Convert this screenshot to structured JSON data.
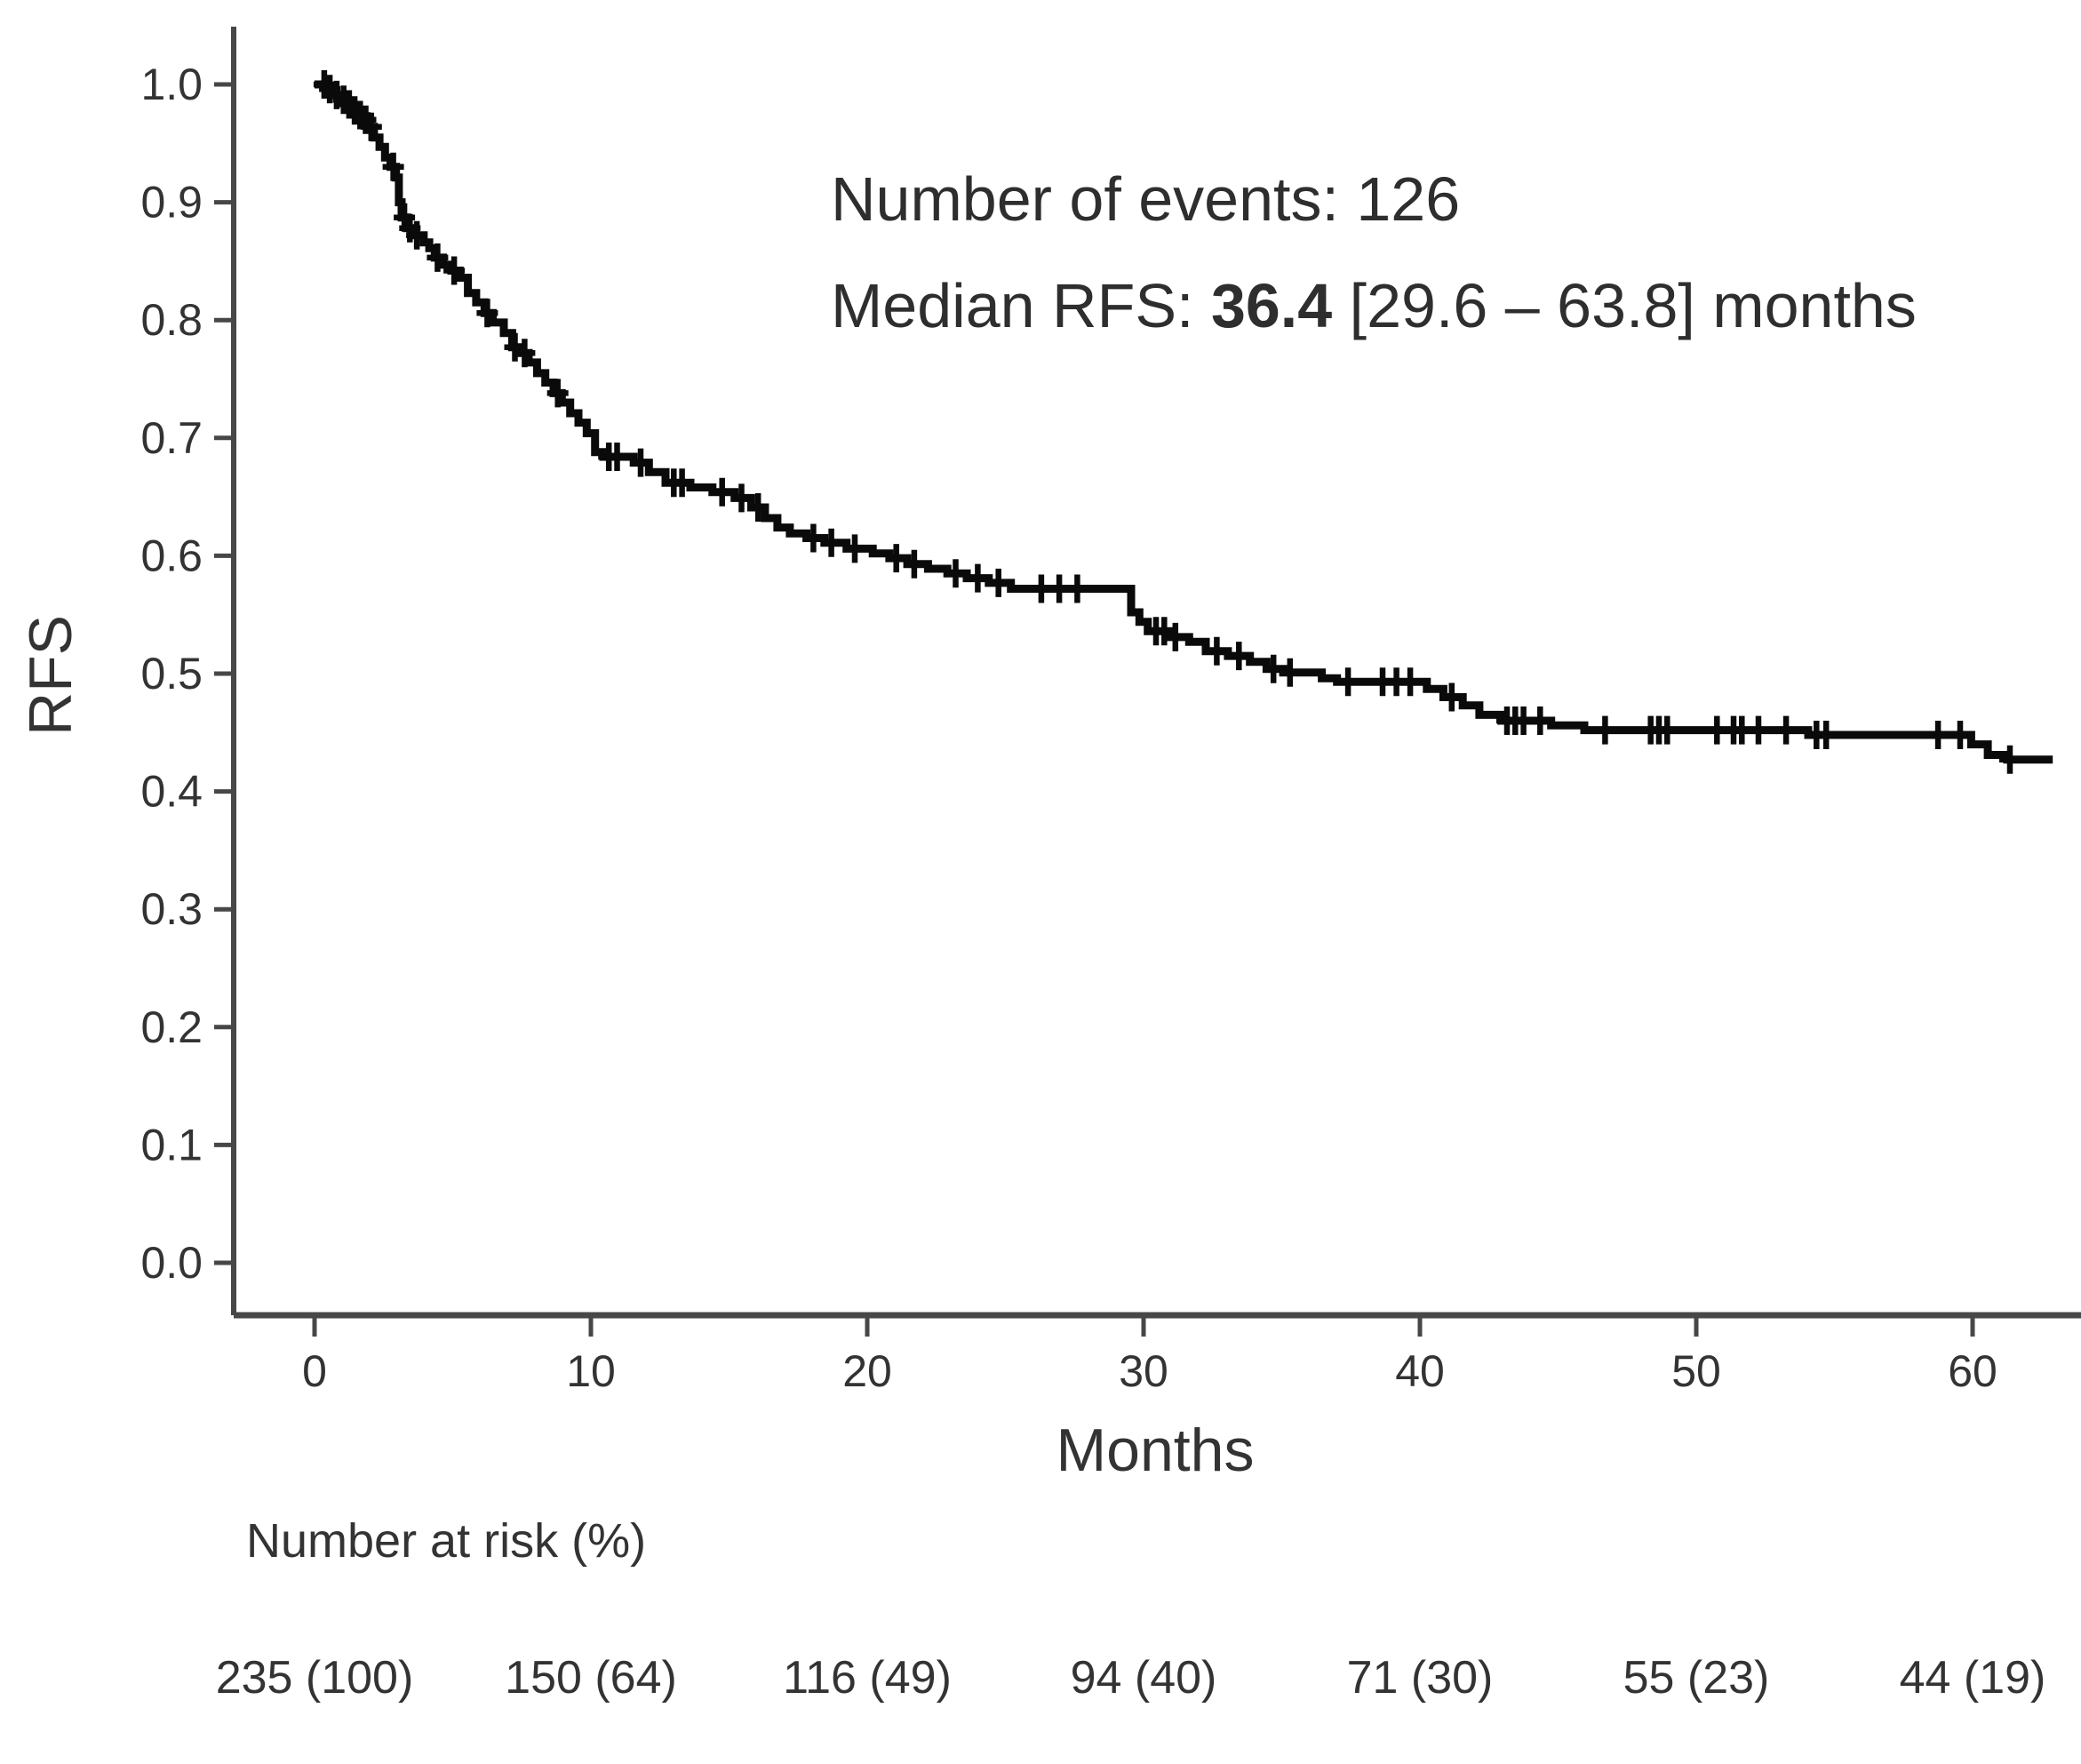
{
  "chart_data": {
    "type": "line",
    "subtype": "kaplan-meier-step-curve",
    "title": "",
    "xlabel": "Months",
    "ylabel": "RFS",
    "xlim": [
      0,
      63.5
    ],
    "ylim": [
      0.0,
      1.0
    ],
    "x_ticks": [
      0,
      10,
      20,
      30,
      40,
      50,
      60
    ],
    "y_ticks": [
      0.0,
      0.1,
      0.2,
      0.3,
      0.4,
      0.5,
      0.6,
      0.7,
      0.8,
      0.9,
      1.0
    ],
    "grid": "off",
    "legend": "none",
    "annotation": {
      "line1": "Number of events: 126",
      "line2_prefix": "Median RFS: ",
      "line2_value": "36.4",
      "line2_suffix": " [29.6 – 63.8] months"
    },
    "curve_end_month": 62.9,
    "km_curve": [
      [
        0.0,
        1.0
      ],
      [
        0.45,
        0.996
      ],
      [
        0.7,
        0.991
      ],
      [
        0.95,
        0.987
      ],
      [
        1.15,
        0.983
      ],
      [
        1.35,
        0.978
      ],
      [
        1.55,
        0.974
      ],
      [
        1.75,
        0.97
      ],
      [
        1.95,
        0.964
      ],
      [
        2.15,
        0.955
      ],
      [
        2.35,
        0.947
      ],
      [
        2.55,
        0.938
      ],
      [
        2.75,
        0.93
      ],
      [
        2.95,
        0.921
      ],
      [
        3.05,
        0.9
      ],
      [
        3.15,
        0.887
      ],
      [
        3.35,
        0.878
      ],
      [
        3.55,
        0.872
      ],
      [
        3.95,
        0.866
      ],
      [
        4.15,
        0.861
      ],
      [
        4.35,
        0.853
      ],
      [
        4.65,
        0.847
      ],
      [
        4.95,
        0.842
      ],
      [
        5.25,
        0.836
      ],
      [
        5.55,
        0.823
      ],
      [
        5.85,
        0.815
      ],
      [
        6.15,
        0.806
      ],
      [
        6.45,
        0.798
      ],
      [
        6.85,
        0.789
      ],
      [
        7.15,
        0.777
      ],
      [
        7.45,
        0.772
      ],
      [
        7.75,
        0.764
      ],
      [
        8.05,
        0.755
      ],
      [
        8.35,
        0.747
      ],
      [
        8.65,
        0.738
      ],
      [
        8.95,
        0.73
      ],
      [
        9.25,
        0.721
      ],
      [
        9.55,
        0.713
      ],
      [
        9.85,
        0.704
      ],
      [
        10.15,
        0.688
      ],
      [
        10.45,
        0.684
      ],
      [
        11.55,
        0.679
      ],
      [
        12.1,
        0.671
      ],
      [
        12.7,
        0.662
      ],
      [
        13.6,
        0.658
      ],
      [
        14.4,
        0.654
      ],
      [
        15.2,
        0.649
      ],
      [
        15.8,
        0.641
      ],
      [
        16.3,
        0.632
      ],
      [
        16.75,
        0.624
      ],
      [
        17.2,
        0.619
      ],
      [
        17.8,
        0.615
      ],
      [
        18.45,
        0.611
      ],
      [
        19.25,
        0.606
      ],
      [
        20.2,
        0.602
      ],
      [
        20.8,
        0.598
      ],
      [
        21.45,
        0.593
      ],
      [
        22.2,
        0.589
      ],
      [
        22.9,
        0.585
      ],
      [
        23.6,
        0.581
      ],
      [
        24.4,
        0.577
      ],
      [
        25.2,
        0.572
      ],
      [
        29.55,
        0.552
      ],
      [
        29.85,
        0.544
      ],
      [
        30.15,
        0.536
      ],
      [
        30.95,
        0.531
      ],
      [
        31.65,
        0.527
      ],
      [
        32.25,
        0.519
      ],
      [
        33.05,
        0.515
      ],
      [
        33.85,
        0.51
      ],
      [
        34.45,
        0.504
      ],
      [
        35.05,
        0.501
      ],
      [
        36.45,
        0.496
      ],
      [
        37.0,
        0.493
      ],
      [
        40.25,
        0.487
      ],
      [
        40.85,
        0.48
      ],
      [
        41.55,
        0.473
      ],
      [
        42.15,
        0.465
      ],
      [
        42.95,
        0.46
      ],
      [
        44.75,
        0.456
      ],
      [
        45.95,
        0.452
      ],
      [
        54.05,
        0.448
      ],
      [
        59.95,
        0.44
      ],
      [
        60.55,
        0.431
      ],
      [
        61.25,
        0.427
      ]
    ],
    "censor_marks": [
      [
        0.35,
        1.0
      ],
      [
        0.55,
        0.996
      ],
      [
        0.8,
        0.991
      ],
      [
        1.05,
        0.987
      ],
      [
        1.25,
        0.983
      ],
      [
        1.45,
        0.978
      ],
      [
        1.65,
        0.974
      ],
      [
        1.85,
        0.97
      ],
      [
        2.05,
        0.964
      ],
      [
        2.85,
        0.93
      ],
      [
        3.25,
        0.887
      ],
      [
        3.45,
        0.878
      ],
      [
        3.7,
        0.872
      ],
      [
        4.45,
        0.853
      ],
      [
        5.05,
        0.842
      ],
      [
        6.25,
        0.806
      ],
      [
        7.25,
        0.777
      ],
      [
        7.6,
        0.772
      ],
      [
        8.8,
        0.738
      ],
      [
        10.65,
        0.684
      ],
      [
        10.95,
        0.684
      ],
      [
        11.8,
        0.679
      ],
      [
        13.0,
        0.662
      ],
      [
        13.3,
        0.662
      ],
      [
        14.75,
        0.654
      ],
      [
        15.45,
        0.649
      ],
      [
        16.05,
        0.641
      ],
      [
        18.05,
        0.615
      ],
      [
        18.7,
        0.611
      ],
      [
        19.55,
        0.606
      ],
      [
        21.05,
        0.598
      ],
      [
        21.7,
        0.593
      ],
      [
        23.2,
        0.585
      ],
      [
        24.0,
        0.581
      ],
      [
        24.75,
        0.577
      ],
      [
        26.3,
        0.572
      ],
      [
        26.95,
        0.572
      ],
      [
        27.6,
        0.572
      ],
      [
        30.45,
        0.536
      ],
      [
        30.75,
        0.536
      ],
      [
        31.15,
        0.531
      ],
      [
        32.65,
        0.519
      ],
      [
        33.45,
        0.515
      ],
      [
        34.7,
        0.504
      ],
      [
        35.3,
        0.501
      ],
      [
        37.4,
        0.493
      ],
      [
        38.65,
        0.493
      ],
      [
        39.15,
        0.493
      ],
      [
        39.65,
        0.493
      ],
      [
        41.15,
        0.48
      ],
      [
        43.15,
        0.46
      ],
      [
        43.45,
        0.46
      ],
      [
        43.75,
        0.46
      ],
      [
        44.35,
        0.46
      ],
      [
        46.7,
        0.452
      ],
      [
        48.35,
        0.452
      ],
      [
        48.65,
        0.452
      ],
      [
        48.95,
        0.452
      ],
      [
        50.75,
        0.452
      ],
      [
        51.35,
        0.452
      ],
      [
        51.65,
        0.452
      ],
      [
        52.25,
        0.452
      ],
      [
        53.25,
        0.452
      ],
      [
        54.35,
        0.448
      ],
      [
        54.7,
        0.448
      ],
      [
        58.75,
        0.448
      ],
      [
        59.55,
        0.448
      ],
      [
        61.35,
        0.427
      ]
    ],
    "risk_table": {
      "header": "Number at risk (%)",
      "months": [
        0,
        10,
        20,
        30,
        40,
        50,
        60
      ],
      "values": [
        "235 (100)",
        "150 (64)",
        "116 (49)",
        "94 (40)",
        "71 (30)",
        "55 (23)",
        "44 (19)"
      ]
    },
    "colors": {
      "curve": "#0a0a0a",
      "axis": "#474747",
      "text": "#333333"
    }
  }
}
